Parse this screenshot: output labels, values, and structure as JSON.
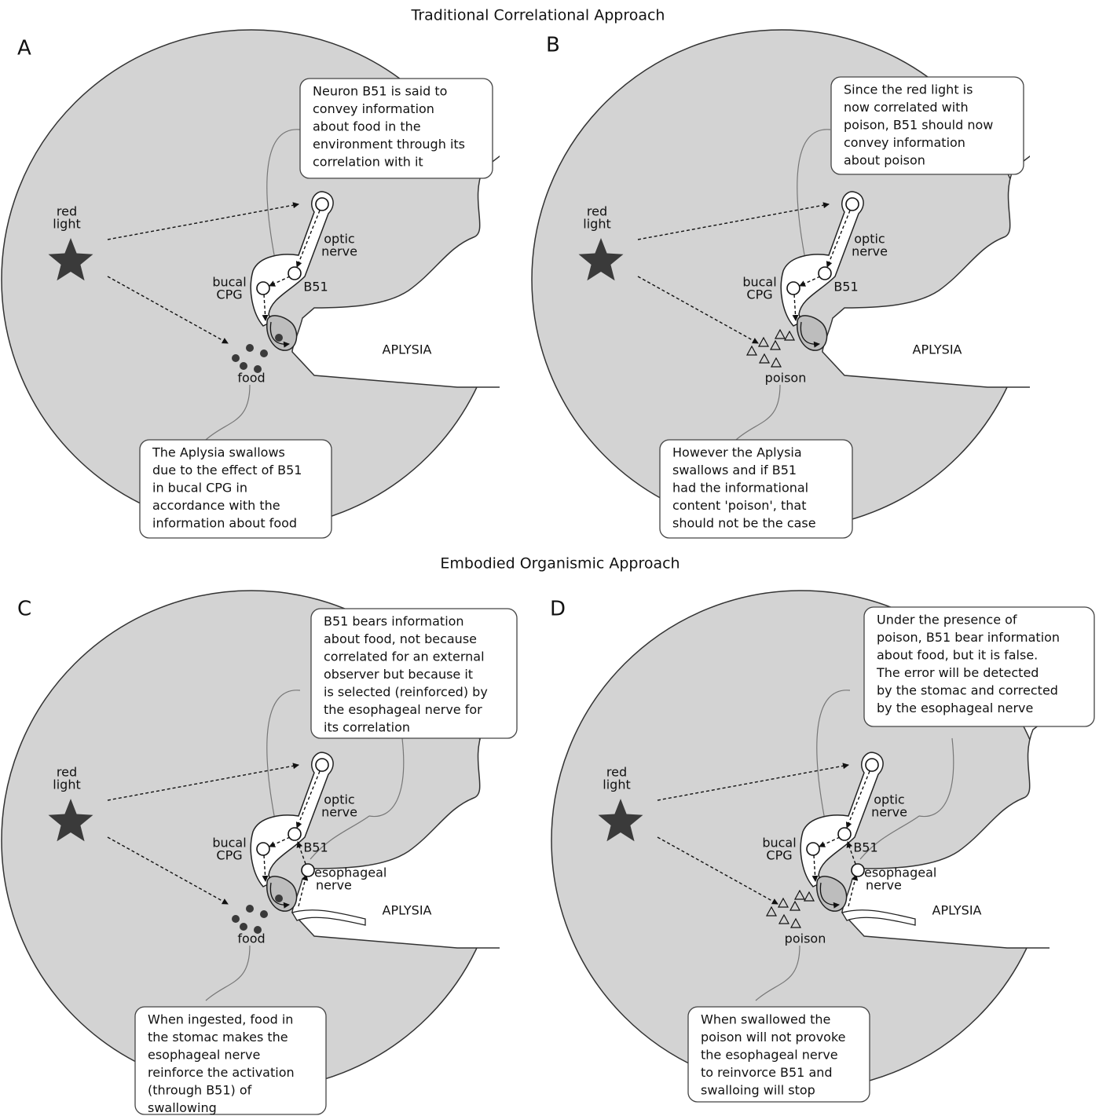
{
  "titles": [
    "Traditional Correlational Approach",
    "Embodied Organismic Approach"
  ],
  "panels": [
    {
      "letter": "A",
      "red_light": [
        "red",
        "light"
      ],
      "optic_nerve": [
        "optic",
        "nerve"
      ],
      "bucal_cpg": [
        "bucal",
        "CPG"
      ],
      "neuron": "B51",
      "stimulus": "food",
      "organism": "APLYSIA",
      "top_callout": [
        "Neuron B51 is said to",
        "convey information",
        "about food in the",
        "environment through its",
        "correlation with it"
      ],
      "bottom_callout": [
        "The Aplysia swallows",
        "due to the effect of B51",
        "in bucal CPG in",
        "accordance with the",
        "information about food"
      ]
    },
    {
      "letter": "B",
      "red_light": [
        "red",
        "light"
      ],
      "optic_nerve": [
        "optic",
        "nerve"
      ],
      "bucal_cpg": [
        "bucal",
        "CPG"
      ],
      "neuron": "B51",
      "stimulus": "poison",
      "organism": "APLYSIA",
      "top_callout": [
        "Since the red light is",
        "now correlated with",
        "poison, B51 should now",
        "convey information",
        "about poison"
      ],
      "bottom_callout": [
        "However the Aplysia",
        "swallows and if B51",
        "had the informational",
        "content 'poison', that",
        "should not be the case"
      ]
    },
    {
      "letter": "C",
      "red_light": [
        "red",
        "light"
      ],
      "optic_nerve": [
        "optic",
        "nerve"
      ],
      "bucal_cpg": [
        "bucal",
        "CPG"
      ],
      "neuron": "B51",
      "stimulus": "food",
      "organism": "APLYSIA",
      "esophageal_nerve": [
        "esophageal",
        "nerve"
      ],
      "top_callout": [
        "B51 bears information",
        "about food, not because",
        "correlated for an external",
        "observer but because it",
        "is selected (reinforced) by",
        "the esophageal nerve for",
        "its correlation"
      ],
      "bottom_callout": [
        "When ingested, food in",
        "the stomac makes the",
        "esophageal nerve",
        "reinforce the activation",
        "(through B51) of",
        "swallowing"
      ]
    },
    {
      "letter": "D",
      "red_light": [
        "red",
        "light"
      ],
      "optic_nerve": [
        "optic",
        "nerve"
      ],
      "bucal_cpg": [
        "bucal",
        "CPG"
      ],
      "neuron": "B51",
      "stimulus": "poison",
      "organism": "APLYSIA",
      "esophageal_nerve": [
        "esophageal",
        "nerve"
      ],
      "top_callout": [
        "Under the presence of",
        "poison, B51 bear information",
        "about food, but it is false.",
        "The error will be detected",
        "by the stomac and corrected",
        "by the esophageal nerve"
      ],
      "bottom_callout": [
        "When swallowed the",
        "poison will not provoke",
        "the esophageal nerve",
        "to reinvorce B51 and",
        "swalloing will stop"
      ]
    }
  ]
}
